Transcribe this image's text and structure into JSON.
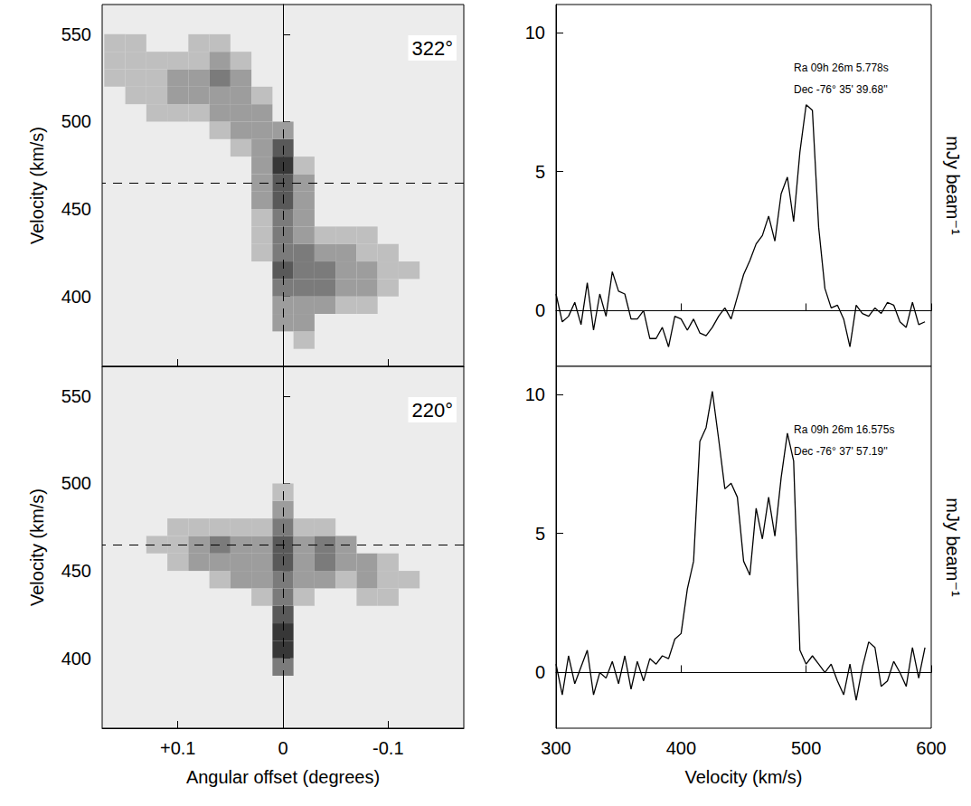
{
  "chart_data": [
    {
      "type": "heatmap",
      "title": "322°",
      "ylabel": "Velocity (km/s)",
      "xlim": [
        0.172,
        -0.172
      ],
      "ylim": [
        360,
        567
      ],
      "xticks": [
        {
          "value": 0.1,
          "label": "+0.1"
        },
        0,
        -0.1
      ],
      "yticks": [
        400,
        450,
        500,
        550
      ],
      "tick_labels": "y",
      "cell_width": 0.02,
      "cell_height": 10,
      "zlim": [
        0,
        5
      ],
      "reference_lines": {
        "x": 0,
        "y": 465
      },
      "cells": [
        [
          0.16,
          525,
          1
        ],
        [
          0.16,
          535,
          1
        ],
        [
          0.16,
          545,
          1
        ],
        [
          0.14,
          515,
          1
        ],
        [
          0.14,
          525,
          1
        ],
        [
          0.14,
          535,
          1
        ],
        [
          0.14,
          545,
          1
        ],
        [
          0.12,
          505,
          1
        ],
        [
          0.12,
          515,
          1
        ],
        [
          0.12,
          525,
          1
        ],
        [
          0.12,
          535,
          1
        ],
        [
          0.1,
          505,
          1
        ],
        [
          0.1,
          515,
          2
        ],
        [
          0.1,
          525,
          2
        ],
        [
          0.1,
          535,
          1
        ],
        [
          0.08,
          505,
          1
        ],
        [
          0.08,
          515,
          2
        ],
        [
          0.08,
          525,
          2
        ],
        [
          0.08,
          535,
          1
        ],
        [
          0.08,
          545,
          1
        ],
        [
          0.06,
          495,
          1
        ],
        [
          0.06,
          505,
          2
        ],
        [
          0.06,
          515,
          2
        ],
        [
          0.06,
          525,
          3
        ],
        [
          0.06,
          535,
          2
        ],
        [
          0.06,
          545,
          1
        ],
        [
          0.04,
          485,
          1
        ],
        [
          0.04,
          495,
          2
        ],
        [
          0.04,
          505,
          2
        ],
        [
          0.04,
          515,
          2
        ],
        [
          0.04,
          525,
          2
        ],
        [
          0.04,
          535,
          1
        ],
        [
          0.02,
          425,
          1
        ],
        [
          0.02,
          435,
          1
        ],
        [
          0.02,
          445,
          1
        ],
        [
          0.02,
          455,
          2
        ],
        [
          0.02,
          465,
          2
        ],
        [
          0.02,
          475,
          2
        ],
        [
          0.02,
          485,
          2
        ],
        [
          0.02,
          495,
          2
        ],
        [
          0.02,
          505,
          2
        ],
        [
          0.02,
          515,
          1
        ],
        [
          0.0,
          385,
          2
        ],
        [
          0.0,
          395,
          2
        ],
        [
          0.0,
          405,
          3
        ],
        [
          0.0,
          415,
          4
        ],
        [
          0.0,
          425,
          3
        ],
        [
          0.0,
          435,
          3
        ],
        [
          0.0,
          445,
          3
        ],
        [
          0.0,
          455,
          4
        ],
        [
          0.0,
          465,
          4
        ],
        [
          0.0,
          475,
          5
        ],
        [
          0.0,
          485,
          4
        ],
        [
          0.0,
          495,
          2
        ],
        [
          -0.02,
          375,
          1
        ],
        [
          -0.02,
          385,
          2
        ],
        [
          -0.02,
          395,
          2
        ],
        [
          -0.02,
          405,
          3
        ],
        [
          -0.02,
          415,
          3
        ],
        [
          -0.02,
          425,
          3
        ],
        [
          -0.02,
          435,
          2
        ],
        [
          -0.02,
          445,
          2
        ],
        [
          -0.02,
          455,
          2
        ],
        [
          -0.02,
          465,
          2
        ],
        [
          -0.02,
          475,
          1
        ],
        [
          -0.04,
          395,
          2
        ],
        [
          -0.04,
          405,
          3
        ],
        [
          -0.04,
          415,
          3
        ],
        [
          -0.04,
          425,
          2
        ],
        [
          -0.04,
          435,
          1
        ],
        [
          -0.06,
          395,
          1
        ],
        [
          -0.06,
          405,
          2
        ],
        [
          -0.06,
          415,
          2
        ],
        [
          -0.06,
          425,
          2
        ],
        [
          -0.06,
          435,
          1
        ],
        [
          -0.08,
          395,
          1
        ],
        [
          -0.08,
          405,
          2
        ],
        [
          -0.08,
          415,
          2
        ],
        [
          -0.08,
          425,
          1
        ],
        [
          -0.08,
          435,
          1
        ],
        [
          -0.1,
          405,
          1
        ],
        [
          -0.1,
          415,
          1
        ],
        [
          -0.1,
          425,
          1
        ],
        [
          -0.12,
          415,
          1
        ]
      ]
    },
    {
      "type": "heatmap",
      "title": "220°",
      "xlabel": "Angular offset (degrees)",
      "ylabel": "Velocity (km/s)",
      "xlim": [
        0.172,
        -0.172
      ],
      "ylim": [
        360,
        567
      ],
      "xticks": [
        {
          "value": 0.1,
          "label": "+0.1"
        },
        0,
        -0.1
      ],
      "yticks": [
        400,
        450,
        500,
        550
      ],
      "tick_labels": true,
      "cell_width": 0.02,
      "cell_height": 10,
      "zlim": [
        0,
        5
      ],
      "reference_lines": {
        "x": 0,
        "y": 465
      },
      "cells": [
        [
          0.12,
          465,
          1
        ],
        [
          0.1,
          455,
          1
        ],
        [
          0.1,
          465,
          1
        ],
        [
          0.1,
          475,
          1
        ],
        [
          0.08,
          455,
          2
        ],
        [
          0.08,
          465,
          2
        ],
        [
          0.08,
          475,
          1
        ],
        [
          0.06,
          445,
          1
        ],
        [
          0.06,
          455,
          2
        ],
        [
          0.06,
          465,
          3
        ],
        [
          0.06,
          475,
          1
        ],
        [
          0.04,
          445,
          2
        ],
        [
          0.04,
          455,
          2
        ],
        [
          0.04,
          465,
          2
        ],
        [
          0.04,
          475,
          1
        ],
        [
          0.02,
          435,
          1
        ],
        [
          0.02,
          445,
          2
        ],
        [
          0.02,
          455,
          2
        ],
        [
          0.02,
          465,
          2
        ],
        [
          0.02,
          475,
          1
        ],
        [
          0.0,
          395,
          3
        ],
        [
          0.0,
          405,
          5
        ],
        [
          0.0,
          415,
          5
        ],
        [
          0.0,
          425,
          4
        ],
        [
          0.0,
          435,
          3
        ],
        [
          0.0,
          445,
          3
        ],
        [
          0.0,
          455,
          4
        ],
        [
          0.0,
          465,
          4
        ],
        [
          0.0,
          475,
          3
        ],
        [
          0.0,
          485,
          2
        ],
        [
          0.0,
          495,
          1
        ],
        [
          -0.02,
          435,
          1
        ],
        [
          -0.02,
          445,
          2
        ],
        [
          -0.02,
          455,
          2
        ],
        [
          -0.02,
          465,
          2
        ],
        [
          -0.02,
          475,
          1
        ],
        [
          -0.04,
          445,
          2
        ],
        [
          -0.04,
          455,
          3
        ],
        [
          -0.04,
          465,
          3
        ],
        [
          -0.04,
          475,
          1
        ],
        [
          -0.06,
          445,
          1
        ],
        [
          -0.06,
          455,
          2
        ],
        [
          -0.06,
          465,
          2
        ],
        [
          -0.08,
          435,
          1
        ],
        [
          -0.08,
          445,
          2
        ],
        [
          -0.08,
          455,
          2
        ],
        [
          -0.1,
          435,
          1
        ],
        [
          -0.1,
          445,
          1
        ],
        [
          -0.1,
          455,
          1
        ],
        [
          -0.12,
          445,
          1
        ]
      ]
    },
    {
      "type": "line",
      "annotations": [
        "Ra 09h 26m 5.778s",
        "Dec -76° 35' 39.68''"
      ],
      "ylabel": "mJy beam⁻¹",
      "xlim": [
        300,
        600
      ],
      "ylim": [
        -2,
        11
      ],
      "xticks": [
        300,
        400,
        500,
        600
      ],
      "yticks": [
        0,
        5,
        10
      ],
      "tick_labels": "y",
      "color": "#000000",
      "x": [
        300,
        305,
        310,
        315,
        320,
        325,
        330,
        335,
        340,
        345,
        350,
        355,
        360,
        365,
        370,
        375,
        380,
        385,
        390,
        395,
        400,
        405,
        410,
        415,
        420,
        425,
        430,
        435,
        440,
        445,
        450,
        455,
        460,
        465,
        470,
        475,
        480,
        485,
        490,
        495,
        500,
        505,
        510,
        515,
        520,
        525,
        530,
        535,
        540,
        545,
        550,
        555,
        560,
        565,
        570,
        575,
        580,
        585,
        590,
        595
      ],
      "values": [
        0.6,
        -0.4,
        -0.2,
        0.3,
        -0.5,
        1.0,
        -0.7,
        0.6,
        -0.2,
        1.4,
        0.7,
        0.6,
        -0.3,
        -0.3,
        0.0,
        -1.0,
        -1.0,
        -0.6,
        -1.3,
        -0.2,
        -0.3,
        -0.7,
        -0.3,
        -0.8,
        -0.9,
        -0.6,
        -0.2,
        0.1,
        -0.3,
        0.5,
        1.3,
        1.8,
        2.4,
        2.7,
        3.4,
        2.5,
        4.2,
        4.8,
        3.2,
        5.7,
        7.4,
        7.2,
        3.0,
        0.8,
        0.1,
        0.2,
        -0.3,
        -1.3,
        0.2,
        -0.1,
        -0.2,
        0.1,
        -0.1,
        0.3,
        0.2,
        -0.4,
        -0.6,
        0.3,
        -0.5,
        -0.4
      ]
    },
    {
      "type": "line",
      "annotations": [
        "Ra 09h 26m 16.575s",
        "Dec -76° 37' 57.19''"
      ],
      "xlabel": "Velocity (km/s)",
      "ylabel": "mJy beam⁻¹",
      "xlim": [
        300,
        600
      ],
      "ylim": [
        -2,
        11
      ],
      "xticks": [
        300,
        400,
        500,
        600
      ],
      "yticks": [
        0,
        5,
        10
      ],
      "tick_labels": true,
      "color": "#000000",
      "x": [
        300,
        305,
        310,
        315,
        320,
        325,
        330,
        335,
        340,
        345,
        350,
        355,
        360,
        365,
        370,
        375,
        380,
        385,
        390,
        395,
        400,
        405,
        410,
        415,
        420,
        425,
        430,
        435,
        440,
        445,
        450,
        455,
        460,
        465,
        470,
        475,
        480,
        485,
        490,
        495,
        500,
        505,
        510,
        515,
        520,
        525,
        530,
        535,
        540,
        545,
        550,
        555,
        560,
        565,
        570,
        575,
        580,
        585,
        590,
        595
      ],
      "values": [
        0.3,
        -0.8,
        0.6,
        -0.4,
        0.2,
        0.8,
        -0.8,
        0.0,
        -0.2,
        0.4,
        -0.4,
        0.6,
        -0.6,
        0.4,
        -0.3,
        0.5,
        0.3,
        0.6,
        0.5,
        1.2,
        1.4,
        3.0,
        4.0,
        8.3,
        8.8,
        10.1,
        8.4,
        6.6,
        6.8,
        6.3,
        4.0,
        3.5,
        5.9,
        4.8,
        6.3,
        4.9,
        7.0,
        8.6,
        7.6,
        0.8,
        0.3,
        0.6,
        0.3,
        0.0,
        0.3,
        -0.3,
        -0.8,
        0.3,
        -1.0,
        0.2,
        1.1,
        0.9,
        -0.5,
        -0.3,
        0.4,
        0.0,
        -0.5,
        0.9,
        -0.2,
        0.9
      ]
    }
  ]
}
